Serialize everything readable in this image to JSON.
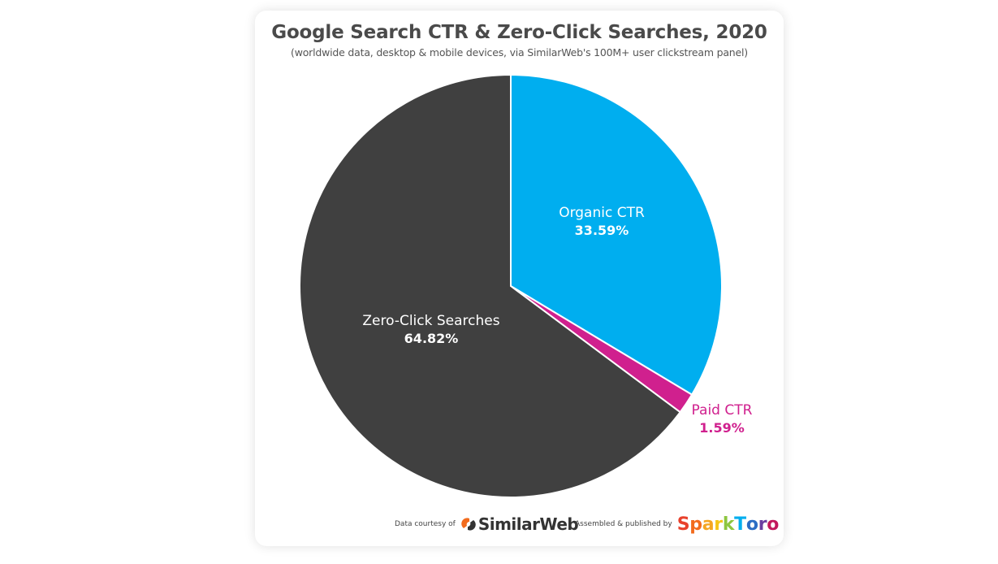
{
  "chart_data": {
    "type": "pie",
    "title": "Google Search CTR & Zero-Click Searches, 2020",
    "subtitle": "(worldwide data, desktop & mobile devices, via SimilarWeb's 100M+ user clickstream panel)",
    "slices": [
      {
        "label": "Organic CTR",
        "value": 33.59,
        "value_label": "33.59%",
        "color": "#00aeef",
        "label_color": "#ffffff"
      },
      {
        "label": "Paid CTR",
        "value": 1.59,
        "value_label": "1.59%",
        "color": "#d0208e",
        "label_color": "#d0208e"
      },
      {
        "label": "Zero-Click Searches",
        "value": 64.82,
        "value_label": "64.82%",
        "color": "#404040",
        "label_color": "#ffffff"
      }
    ],
    "start_angle": "12 o'clock",
    "direction": "clockwise"
  },
  "footer": {
    "data_courtesy_label": "Data courtesy of",
    "data_courtesy_brand": "SimilarWeb",
    "published_label": "Assembled & published by",
    "publisher_brand": "SparkToro"
  },
  "brand_colors": {
    "sparktoro_letters": [
      "#e8412c",
      "#f26b1d",
      "#f5a623",
      "#f5c518",
      "#8dc63f",
      "#00aeef",
      "#2b6cc4",
      "#6a3ea1",
      "#c2185b"
    ]
  }
}
